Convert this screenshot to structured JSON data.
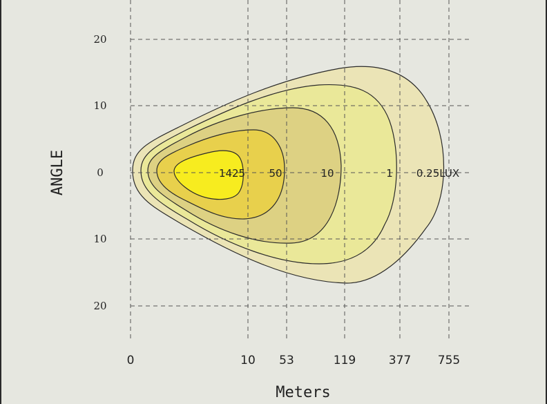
{
  "chart_data": {
    "type": "isolux_contour",
    "xlabel": "Meters",
    "ylabel": "ANGLE",
    "x_ticks": [
      "0",
      "10",
      "53",
      "119",
      "377",
      "755"
    ],
    "y_ticks": [
      "20",
      "10",
      "0",
      "10",
      "20"
    ],
    "y_values": [
      20,
      10,
      0,
      -10,
      -20
    ],
    "grid": true,
    "contours": [
      {
        "label": "1425",
        "color": "#f7ec1f"
      },
      {
        "label": "50",
        "color": "#e8d04c"
      },
      {
        "label": "10",
        "color": "#ddd183"
      },
      {
        "label": "1",
        "color": "#eae899"
      },
      {
        "label": "0.25LUX",
        "color": "#ebe4b6"
      }
    ]
  }
}
